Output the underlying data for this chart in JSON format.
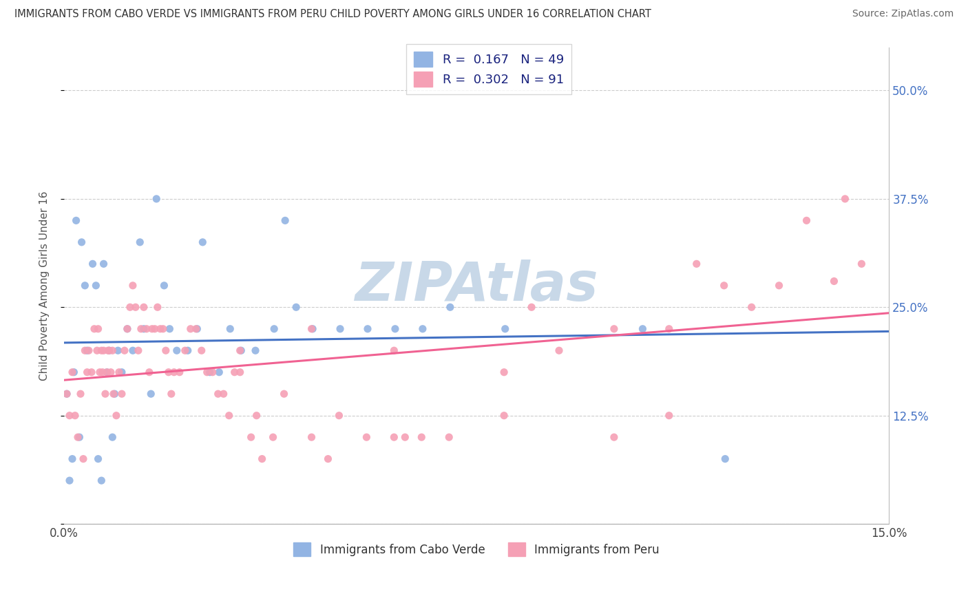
{
  "title": "IMMIGRANTS FROM CABO VERDE VS IMMIGRANTS FROM PERU CHILD POVERTY AMONG GIRLS UNDER 16 CORRELATION CHART",
  "source": "Source: ZipAtlas.com",
  "ylabel": "Child Poverty Among Girls Under 16",
  "xlim": [
    0.0,
    15.0
  ],
  "ylim": [
    0.0,
    55.0
  ],
  "cabo_verde_color": "#92b4e3",
  "peru_color": "#f5a0b5",
  "cabo_verde_line_color": "#4472c4",
  "peru_line_color": "#f06292",
  "cabo_verde_R": 0.167,
  "cabo_verde_N": 49,
  "peru_R": 0.302,
  "peru_N": 91,
  "watermark": "ZIPAtlas",
  "watermark_color": "#c8d8e8",
  "background_color": "#ffffff",
  "legend_color": "#1a237e",
  "cabo_verde_x": [
    0.05,
    0.1,
    0.15,
    0.18,
    0.22,
    0.28,
    0.32,
    0.38,
    0.42,
    0.52,
    0.58,
    0.62,
    0.68,
    0.72,
    0.78,
    0.82,
    0.88,
    0.92,
    0.98,
    1.05,
    1.15,
    1.25,
    1.38,
    1.45,
    1.58,
    1.68,
    1.82,
    1.92,
    2.05,
    2.25,
    2.42,
    2.52,
    2.65,
    2.82,
    3.02,
    3.22,
    3.48,
    3.82,
    4.02,
    4.22,
    4.52,
    5.02,
    5.52,
    6.02,
    6.52,
    7.02,
    8.02,
    10.52,
    12.02
  ],
  "cabo_verde_y": [
    15.0,
    5.0,
    7.5,
    17.5,
    35.0,
    10.0,
    32.5,
    27.5,
    20.0,
    30.0,
    27.5,
    7.5,
    5.0,
    30.0,
    17.5,
    20.0,
    10.0,
    15.0,
    20.0,
    17.5,
    22.5,
    20.0,
    32.5,
    22.5,
    15.0,
    37.5,
    27.5,
    22.5,
    20.0,
    20.0,
    22.5,
    32.5,
    17.5,
    17.5,
    22.5,
    20.0,
    20.0,
    22.5,
    35.0,
    25.0,
    22.5,
    22.5,
    22.5,
    22.5,
    22.5,
    25.0,
    22.5,
    22.5,
    7.5
  ],
  "peru_x": [
    0.05,
    0.1,
    0.15,
    0.2,
    0.25,
    0.3,
    0.35,
    0.38,
    0.42,
    0.45,
    0.5,
    0.55,
    0.6,
    0.62,
    0.65,
    0.68,
    0.7,
    0.72,
    0.75,
    0.78,
    0.8,
    0.82,
    0.85,
    0.88,
    0.9,
    0.95,
    1.0,
    1.05,
    1.1,
    1.15,
    1.2,
    1.25,
    1.3,
    1.35,
    1.4,
    1.45,
    1.5,
    1.55,
    1.6,
    1.65,
    1.7,
    1.75,
    1.8,
    1.85,
    1.9,
    1.95,
    2.0,
    2.1,
    2.2,
    2.3,
    2.4,
    2.5,
    2.6,
    2.7,
    2.8,
    2.9,
    3.0,
    3.1,
    3.2,
    3.4,
    3.6,
    3.8,
    4.0,
    4.5,
    5.0,
    5.5,
    6.0,
    6.5,
    7.0,
    8.0,
    9.0,
    10.0,
    11.0,
    12.0,
    13.0,
    14.0,
    14.5,
    3.2,
    4.5,
    6.0,
    8.5,
    11.5,
    13.5,
    14.2,
    3.5,
    4.8,
    6.2,
    8.0,
    10.0,
    11.0,
    12.5
  ],
  "peru_y": [
    15.0,
    12.5,
    17.5,
    12.5,
    10.0,
    15.0,
    7.5,
    20.0,
    17.5,
    20.0,
    17.5,
    22.5,
    20.0,
    22.5,
    17.5,
    20.0,
    17.5,
    20.0,
    15.0,
    17.5,
    20.0,
    20.0,
    17.5,
    20.0,
    15.0,
    12.5,
    17.5,
    15.0,
    20.0,
    22.5,
    25.0,
    27.5,
    25.0,
    20.0,
    22.5,
    25.0,
    22.5,
    17.5,
    22.5,
    22.5,
    25.0,
    22.5,
    22.5,
    20.0,
    17.5,
    15.0,
    17.5,
    17.5,
    20.0,
    22.5,
    22.5,
    20.0,
    17.5,
    17.5,
    15.0,
    15.0,
    12.5,
    17.5,
    17.5,
    10.0,
    7.5,
    10.0,
    15.0,
    10.0,
    12.5,
    10.0,
    10.0,
    10.0,
    10.0,
    17.5,
    20.0,
    22.5,
    22.5,
    27.5,
    27.5,
    28.0,
    30.0,
    20.0,
    22.5,
    20.0,
    25.0,
    30.0,
    35.0,
    37.5,
    12.5,
    7.5,
    10.0,
    12.5,
    10.0,
    12.5,
    25.0
  ]
}
